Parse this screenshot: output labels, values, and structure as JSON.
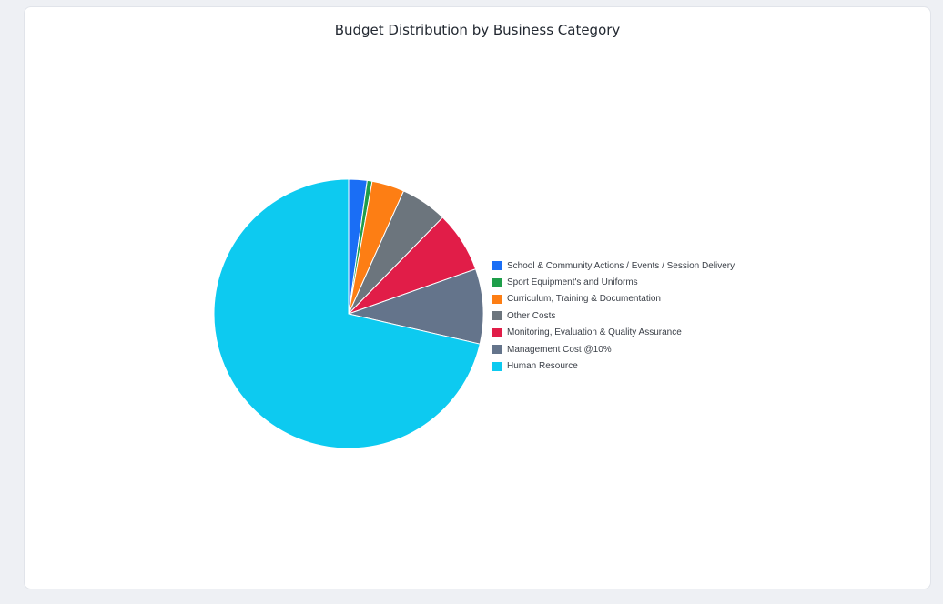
{
  "chart_data": {
    "type": "pie",
    "title": "Budget Distribution by Business Category",
    "legend_position": "right",
    "slices": [
      {
        "label": "School & Community Actions / Events / Session Delivery",
        "value": 2.2,
        "color": "#1a6ef5"
      },
      {
        "label": "Sport Equipment's and Uniforms",
        "value": 0.6,
        "color": "#1e9e4a"
      },
      {
        "label": "Curriculum, Training & Documentation",
        "value": 3.9,
        "color": "#fd7e14"
      },
      {
        "label": "Other Costs",
        "value": 5.6,
        "color": "#6c757d"
      },
      {
        "label": "Monitoring, Evaluation & Quality Assurance",
        "value": 7.3,
        "color": "#e11d48"
      },
      {
        "label": "Management Cost @10%",
        "value": 9.0,
        "color": "#64748b"
      },
      {
        "label": "Human Resource",
        "value": 71.4,
        "color": "#0dcaf0"
      }
    ]
  }
}
